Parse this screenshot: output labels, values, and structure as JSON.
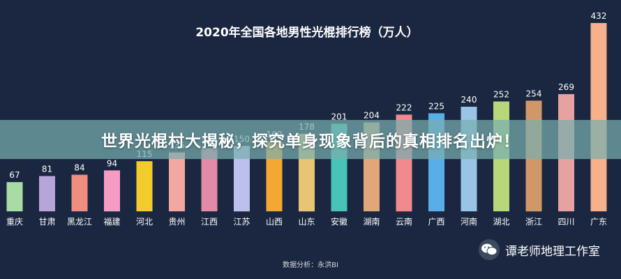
{
  "chart_data": {
    "type": "bar",
    "title": "2020年全国各地男性光棍排行榜（万人）",
    "categories": [
      "重庆",
      "甘肃",
      "黑龙江",
      "福建",
      "河北",
      "贵州",
      "江西",
      "江苏",
      "山西",
      "山东",
      "安徽",
      "湖南",
      "云南",
      "广西",
      "河南",
      "湖北",
      "浙江",
      "四川",
      "广东"
    ],
    "values": [
      67,
      81,
      84,
      94,
      115,
      135,
      145,
      150,
      160,
      178,
      201,
      204,
      222,
      225,
      240,
      252,
      254,
      269,
      432
    ],
    "value_labels": [
      "67",
      "81",
      "84",
      "94",
      "115",
      "135",
      "145",
      "150",
      "160",
      "178",
      "201",
      "204",
      "222",
      "225",
      "240",
      "252",
      "254",
      "269",
      "432"
    ],
    "colors": [
      "#a8dca4",
      "#b7a4d8",
      "#ef8e80",
      "#f49cc4",
      "#f2cb2c",
      "#f2a8a0",
      "#e28aa6",
      "#bdc0ee",
      "#f3a833",
      "#e8c474",
      "#47c4b8",
      "#dfa77a",
      "#f08a8e",
      "#5aaee8",
      "#98c4e8",
      "#b8d778",
      "#d09868",
      "#e6a2a0",
      "#f6b08a"
    ],
    "source": "数据分析：永洪BI",
    "ylim": [
      0,
      432
    ]
  },
  "banner": {
    "text": "世界光棍村大揭秘，探究单身现象背后的真相排名出炉！"
  },
  "watermark": {
    "text": "谭老师地理工作室",
    "icon": "wechat-icon"
  }
}
